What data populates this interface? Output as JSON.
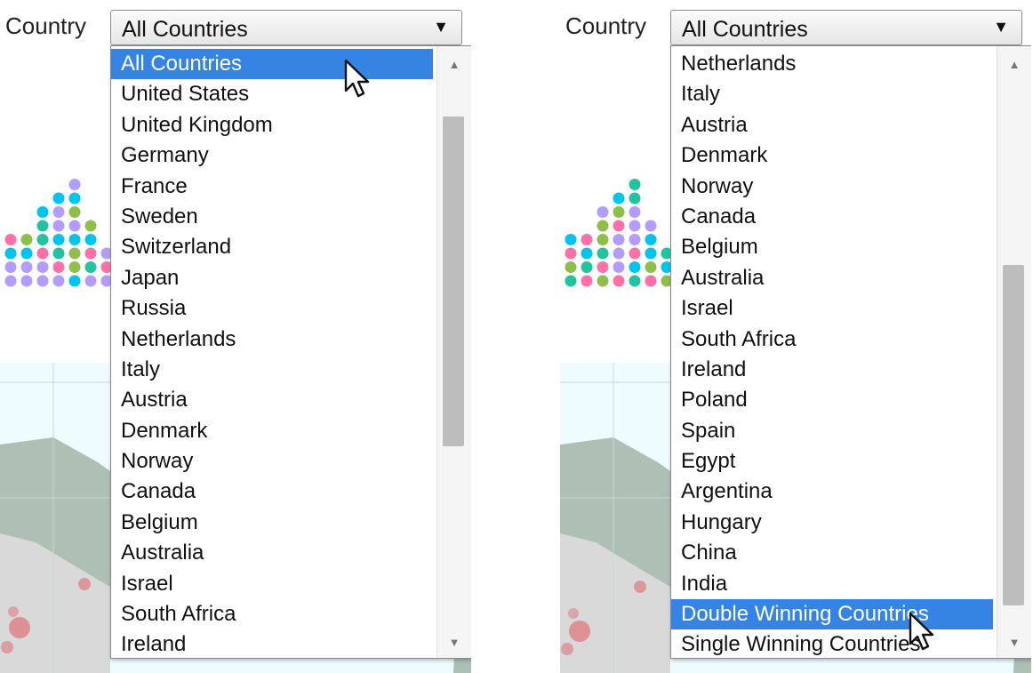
{
  "panels": [
    {
      "label": "Country",
      "selected_value": "All Countries",
      "arrow_glyph": "▼",
      "options": [
        "All Countries",
        "United States",
        "United Kingdom",
        "Germany",
        "France",
        "Sweden",
        "Switzerland",
        "Japan",
        "Russia",
        "Netherlands",
        "Italy",
        "Austria",
        "Denmark",
        "Norway",
        "Canada",
        "Belgium",
        "Australia",
        "Israel",
        "South Africa",
        "Ireland"
      ],
      "highlighted_index": 0,
      "scroll_thumb": {
        "start_fraction": 0.07,
        "end_fraction": 0.67
      }
    },
    {
      "label": "Country",
      "selected_value": "All Countries",
      "arrow_glyph": "▼",
      "options": [
        "Netherlands",
        "Italy",
        "Austria",
        "Denmark",
        "Norway",
        "Canada",
        "Belgium",
        "Australia",
        "Israel",
        "South Africa",
        "Ireland",
        "Poland",
        "Spain",
        "Egypt",
        "Argentina",
        "Hungary",
        "China",
        "India",
        "Double Winning Countries",
        "Single Winning Countries"
      ],
      "highlighted_index": 18,
      "scroll_thumb": {
        "start_fraction": 0.34,
        "end_fraction": 0.96
      }
    }
  ],
  "colors": {
    "highlight": "#3584e4",
    "dot_colors": [
      "#00c4f0",
      "#ff6fa8",
      "#b49cff",
      "#22c3a0",
      "#8fbf4a",
      "#f29a3a"
    ],
    "map_land": "#aebfb4",
    "map_water": "#eefcff",
    "map_city_dot": "#e0555a"
  },
  "icons": {
    "cursor": "arrow-cursor-icon",
    "scroll_up": "scroll-up-arrow-icon",
    "scroll_down": "scroll-down-arrow-icon"
  }
}
